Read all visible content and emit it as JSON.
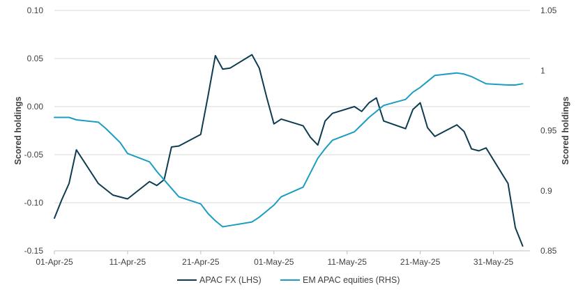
{
  "chart_data": {
    "type": "line",
    "title": "",
    "xlabel": "",
    "ylabel_left": "Scored holdings",
    "ylabel_right": "Scored holdings",
    "x_tick_labels": [
      "01-Apr-25",
      "11-Apr-25",
      "21-Apr-25",
      "01-May-25",
      "11-May-25",
      "21-May-25",
      "31-May-25"
    ],
    "y_left": {
      "min": -0.15,
      "max": 0.1,
      "ticks": [
        0.1,
        0.05,
        0.0,
        -0.05,
        -0.1,
        -0.15
      ],
      "tick_labels": [
        "0.10",
        "0.05",
        "0.00",
        "-0.05",
        "-0.10",
        "-0.15"
      ]
    },
    "y_right": {
      "min": 0.85,
      "max": 1.05,
      "ticks": [
        1.05,
        1.0,
        0.95,
        0.9,
        0.85
      ],
      "tick_labels": [
        "1.05",
        "1",
        "0.95",
        "0.9",
        "0.85"
      ]
    },
    "grid": "horizontal",
    "legend_position": "bottom",
    "series": [
      {
        "name": "APAC FX (LHS)",
        "axis": "left",
        "color": "#0d3b4f",
        "points": [
          [
            "2025-04-01",
            -0.116
          ],
          [
            "2025-04-02",
            -0.097
          ],
          [
            "2025-04-03",
            -0.08
          ],
          [
            "2025-04-04",
            -0.045
          ],
          [
            "2025-04-07",
            -0.08
          ],
          [
            "2025-04-09",
            -0.092
          ],
          [
            "2025-04-11",
            -0.096
          ],
          [
            "2025-04-14",
            -0.078
          ],
          [
            "2025-04-15",
            -0.082
          ],
          [
            "2025-04-16",
            -0.076
          ],
          [
            "2025-04-17",
            -0.042
          ],
          [
            "2025-04-18",
            -0.041
          ],
          [
            "2025-04-21",
            -0.029
          ],
          [
            "2025-04-22",
            0.011
          ],
          [
            "2025-04-23",
            0.053
          ],
          [
            "2025-04-24",
            0.039
          ],
          [
            "2025-04-25",
            0.04
          ],
          [
            "2025-04-28",
            0.054
          ],
          [
            "2025-04-29",
            0.04
          ],
          [
            "2025-04-30",
            0.01
          ],
          [
            "2025-05-01",
            -0.018
          ],
          [
            "2025-05-02",
            -0.013
          ],
          [
            "2025-05-05",
            -0.02
          ],
          [
            "2025-05-06",
            -0.032
          ],
          [
            "2025-05-07",
            -0.04
          ],
          [
            "2025-05-08",
            -0.015
          ],
          [
            "2025-05-09",
            -0.007
          ],
          [
            "2025-05-12",
            0.0
          ],
          [
            "2025-05-13",
            -0.005
          ],
          [
            "2025-05-14",
            0.004
          ],
          [
            "2025-05-15",
            0.009
          ],
          [
            "2025-05-16",
            -0.015
          ],
          [
            "2025-05-19",
            -0.023
          ],
          [
            "2025-05-20",
            -0.003
          ],
          [
            "2025-05-21",
            0.004
          ],
          [
            "2025-05-22",
            -0.022
          ],
          [
            "2025-05-23",
            -0.031
          ],
          [
            "2025-05-26",
            -0.019
          ],
          [
            "2025-05-27",
            -0.026
          ],
          [
            "2025-05-28",
            -0.044
          ],
          [
            "2025-05-29",
            -0.046
          ],
          [
            "2025-05-30",
            -0.043
          ],
          [
            "2025-06-02",
            -0.08
          ],
          [
            "2025-06-03",
            -0.126
          ],
          [
            "2025-06-04",
            -0.145
          ]
        ]
      },
      {
        "name": "EM APAC equities (RHS)",
        "axis": "right",
        "color": "#1b9cc2",
        "points": [
          [
            "2025-04-01",
            0.961
          ],
          [
            "2025-04-03",
            0.961
          ],
          [
            "2025-04-04",
            0.959
          ],
          [
            "2025-04-07",
            0.957
          ],
          [
            "2025-04-08",
            0.952
          ],
          [
            "2025-04-09",
            0.946
          ],
          [
            "2025-04-10",
            0.94
          ],
          [
            "2025-04-11",
            0.931
          ],
          [
            "2025-04-14",
            0.924
          ],
          [
            "2025-04-15",
            0.916
          ],
          [
            "2025-04-16",
            0.909
          ],
          [
            "2025-04-17",
            0.902
          ],
          [
            "2025-04-18",
            0.895
          ],
          [
            "2025-04-21",
            0.889
          ],
          [
            "2025-04-22",
            0.881
          ],
          [
            "2025-04-23",
            0.875
          ],
          [
            "2025-04-24",
            0.87
          ],
          [
            "2025-04-25",
            0.871
          ],
          [
            "2025-04-28",
            0.874
          ],
          [
            "2025-04-29",
            0.878
          ],
          [
            "2025-04-30",
            0.883
          ],
          [
            "2025-05-01",
            0.888
          ],
          [
            "2025-05-02",
            0.895
          ],
          [
            "2025-05-05",
            0.903
          ],
          [
            "2025-05-06",
            0.915
          ],
          [
            "2025-05-07",
            0.927
          ],
          [
            "2025-05-08",
            0.935
          ],
          [
            "2025-05-09",
            0.942
          ],
          [
            "2025-05-12",
            0.949
          ],
          [
            "2025-05-13",
            0.955
          ],
          [
            "2025-05-14",
            0.961
          ],
          [
            "2025-05-15",
            0.966
          ],
          [
            "2025-05-16",
            0.971
          ],
          [
            "2025-05-19",
            0.976
          ],
          [
            "2025-05-20",
            0.982
          ],
          [
            "2025-05-21",
            0.986
          ],
          [
            "2025-05-22",
            0.991
          ],
          [
            "2025-05-23",
            0.996
          ],
          [
            "2025-05-26",
            0.998
          ],
          [
            "2025-05-27",
            0.997
          ],
          [
            "2025-05-28",
            0.995
          ],
          [
            "2025-05-29",
            0.992
          ],
          [
            "2025-05-30",
            0.989
          ],
          [
            "2025-06-02",
            0.988
          ],
          [
            "2025-06-03",
            0.988
          ],
          [
            "2025-06-04",
            0.989
          ]
        ]
      }
    ]
  }
}
